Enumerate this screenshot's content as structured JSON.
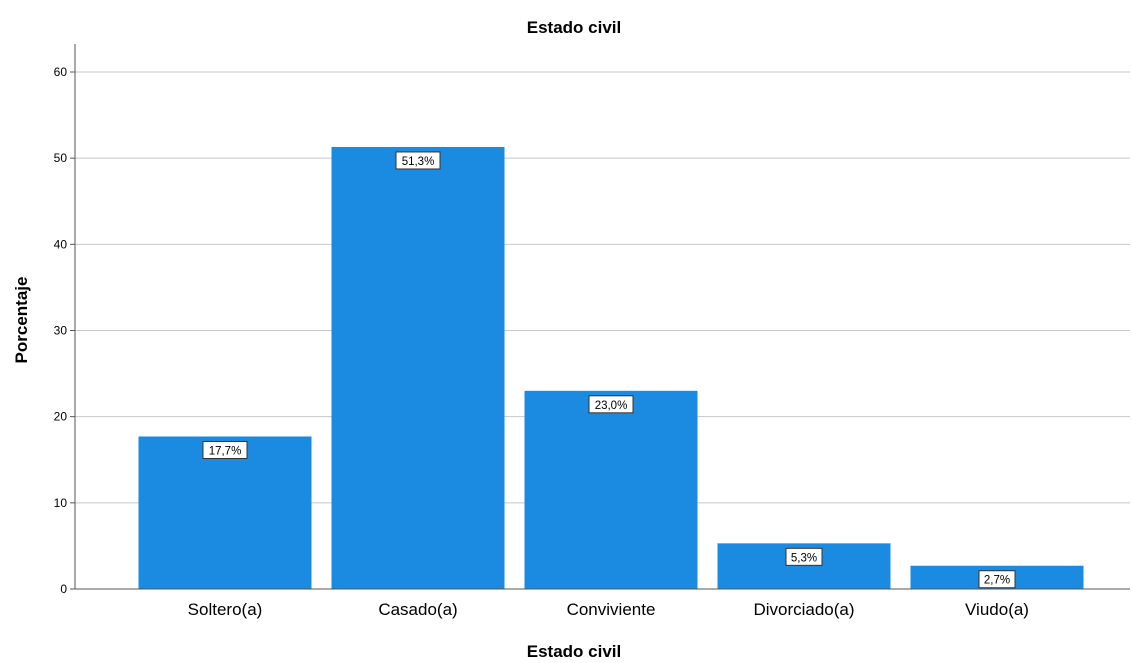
{
  "chart_data": {
    "type": "bar",
    "title": "Estado civil",
    "xlabel": "Estado civil",
    "ylabel": "Porcentaje",
    "categories": [
      "Soltero(a)",
      "Casado(a)",
      "Conviviente",
      "Divorciado(a)",
      "Viudo(a)"
    ],
    "values": [
      17.7,
      51.3,
      23.0,
      5.3,
      2.7
    ],
    "data_labels": [
      "17,7%",
      "51,3%",
      "23,0%",
      "5,3%",
      "2,7%"
    ],
    "ylim": [
      0,
      60
    ],
    "yticks": [
      0,
      10,
      20,
      30,
      40,
      50,
      60
    ],
    "grid": true,
    "legend": "none",
    "bar_color": "#1a8be0",
    "grid_color": "#c8c8c8"
  }
}
